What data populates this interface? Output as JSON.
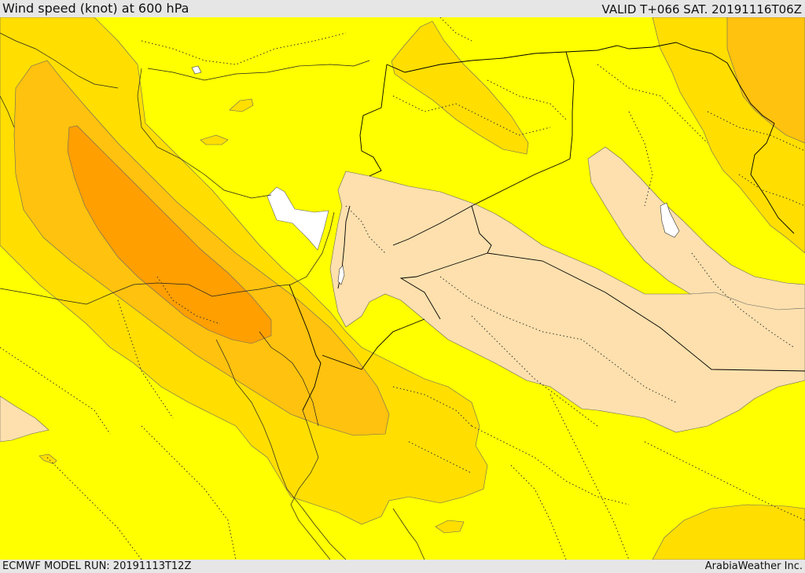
{
  "header": {
    "title": "Wind speed (knot) at 600 hPa",
    "valid_time": "VALID T+066 SAT. 20191116T06Z"
  },
  "footer": {
    "model_run": "ECMWF MODEL RUN: 20191113T12Z",
    "credit": "ArabiaWeather Inc."
  },
  "map": {
    "variable": "wind speed",
    "units": "knot",
    "pressure_level_hpa": 600,
    "colors": {
      "calm_white": "#ffffff",
      "band_light_tan": "#fde0ad",
      "band_yellow": "#ffff00",
      "band_gold": "#ffde00",
      "band_light_orange": "#ffc20e",
      "band_orange": "#ff9f00",
      "boundary_line": "#000000",
      "contour_line": "#555555"
    }
  }
}
